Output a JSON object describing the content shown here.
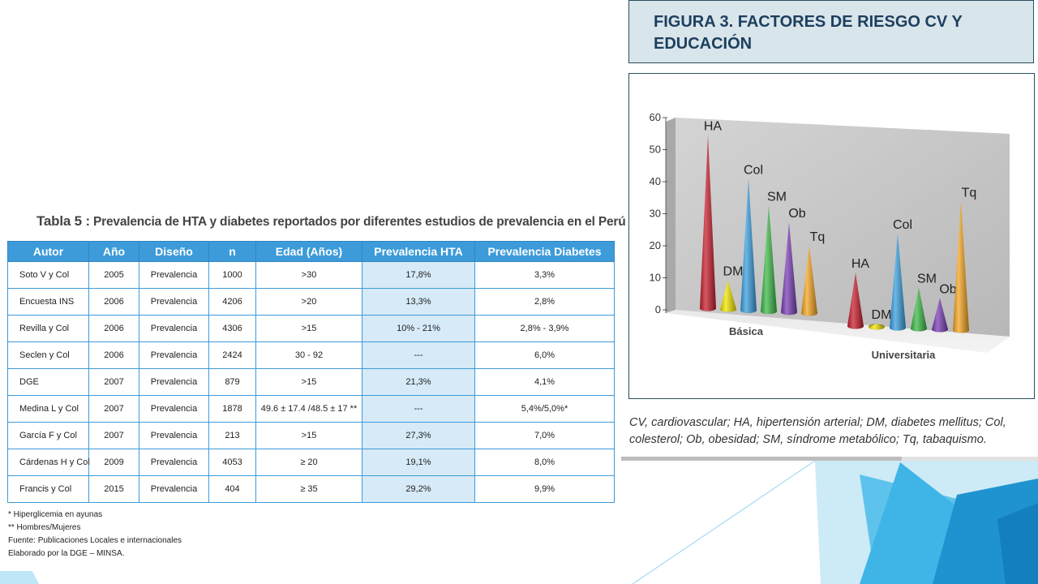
{
  "table": {
    "title_lead": "Tabla 5 :",
    "title_rest": "Prevalencia de HTA y diabetes reportados por diferentes estudios de prevalencia en el Perú",
    "headers": [
      "Autor",
      "Año",
      "Diseño",
      "n",
      "Edad (Años)",
      "Prevalencia HTA",
      "Prevalencia Diabetes"
    ],
    "rows": [
      [
        "Soto V y Col",
        "2005",
        "Prevalencia",
        "1000",
        ">30",
        "17,8%",
        "3,3%"
      ],
      [
        "Encuesta INS",
        "2006",
        "Prevalencia",
        "4206",
        ">20",
        "13,3%",
        "2,8%"
      ],
      [
        "Revilla y Col",
        "2006",
        "Prevalencia",
        "4306",
        ">15",
        "10% - 21%",
        "2,8% - 3,9%"
      ],
      [
        "Seclen y Col",
        "2006",
        "Prevalencia",
        "2424",
        "30 - 92",
        "---",
        "6,0%"
      ],
      [
        "DGE",
        "2007",
        "Prevalencia",
        "879",
        ">15",
        "21,3%",
        "4,1%"
      ],
      [
        "Medina L y Col",
        "2007",
        "Prevalencia",
        "1878",
        "49.6 ± 17.4 /48.5 ± 17 **",
        "---",
        "5,4%/5,0%*"
      ],
      [
        "García F y Col",
        "2007",
        "Prevalencia",
        "213",
        ">15",
        "27,3%",
        "7,0%"
      ],
      [
        "Cárdenas H y Col",
        "2009",
        "Prevalencia",
        "4053",
        "≥ 20",
        "19,1%",
        "8,0%"
      ],
      [
        "Francis y Col",
        "2015",
        "Prevalencia",
        "404",
        "≥ 35",
        "29,2%",
        "9,9%"
      ]
    ],
    "notes": [
      "* Hiperglicemia en ayunas",
      "** Hombres/Mujeres",
      "Fuente: Publicaciones Locales e internacionales",
      "Elaborado por la DGE – MINSA."
    ]
  },
  "figure": {
    "title": "FIGURA 3.  FACTORES DE RIESGO CV Y EDUCACIÓN",
    "caption": "CV, cardiovascular; HA, hipertensión arterial; DM, diabetes mellitus; Col, colesterol; Ob, obesidad; SM, síndrome metabólico; Tq, tabaquismo."
  },
  "chart_data": {
    "type": "bar",
    "subtype": "3d-cone",
    "categories": [
      "Básica",
      "Universitaria"
    ],
    "series": [
      {
        "name": "HA",
        "values": [
          54,
          17
        ],
        "color": "#c8202f"
      },
      {
        "name": "DM",
        "values": [
          9,
          1
        ],
        "color": "#f2e600"
      },
      {
        "name": "Col",
        "values": [
          41,
          30
        ],
        "color": "#3aa0e0"
      },
      {
        "name": "SM",
        "values": [
          33,
          13
        ],
        "color": "#3dba4a"
      },
      {
        "name": "Ob",
        "values": [
          28,
          10
        ],
        "color": "#7b3fb5"
      },
      {
        "name": "Tq",
        "values": [
          21,
          41
        ],
        "color": "#f5a623"
      }
    ],
    "yticks": [
      "0",
      "10",
      "20",
      "30",
      "40",
      "50",
      "60"
    ],
    "ylim": [
      0,
      60
    ],
    "grid": false,
    "legend": "none"
  }
}
